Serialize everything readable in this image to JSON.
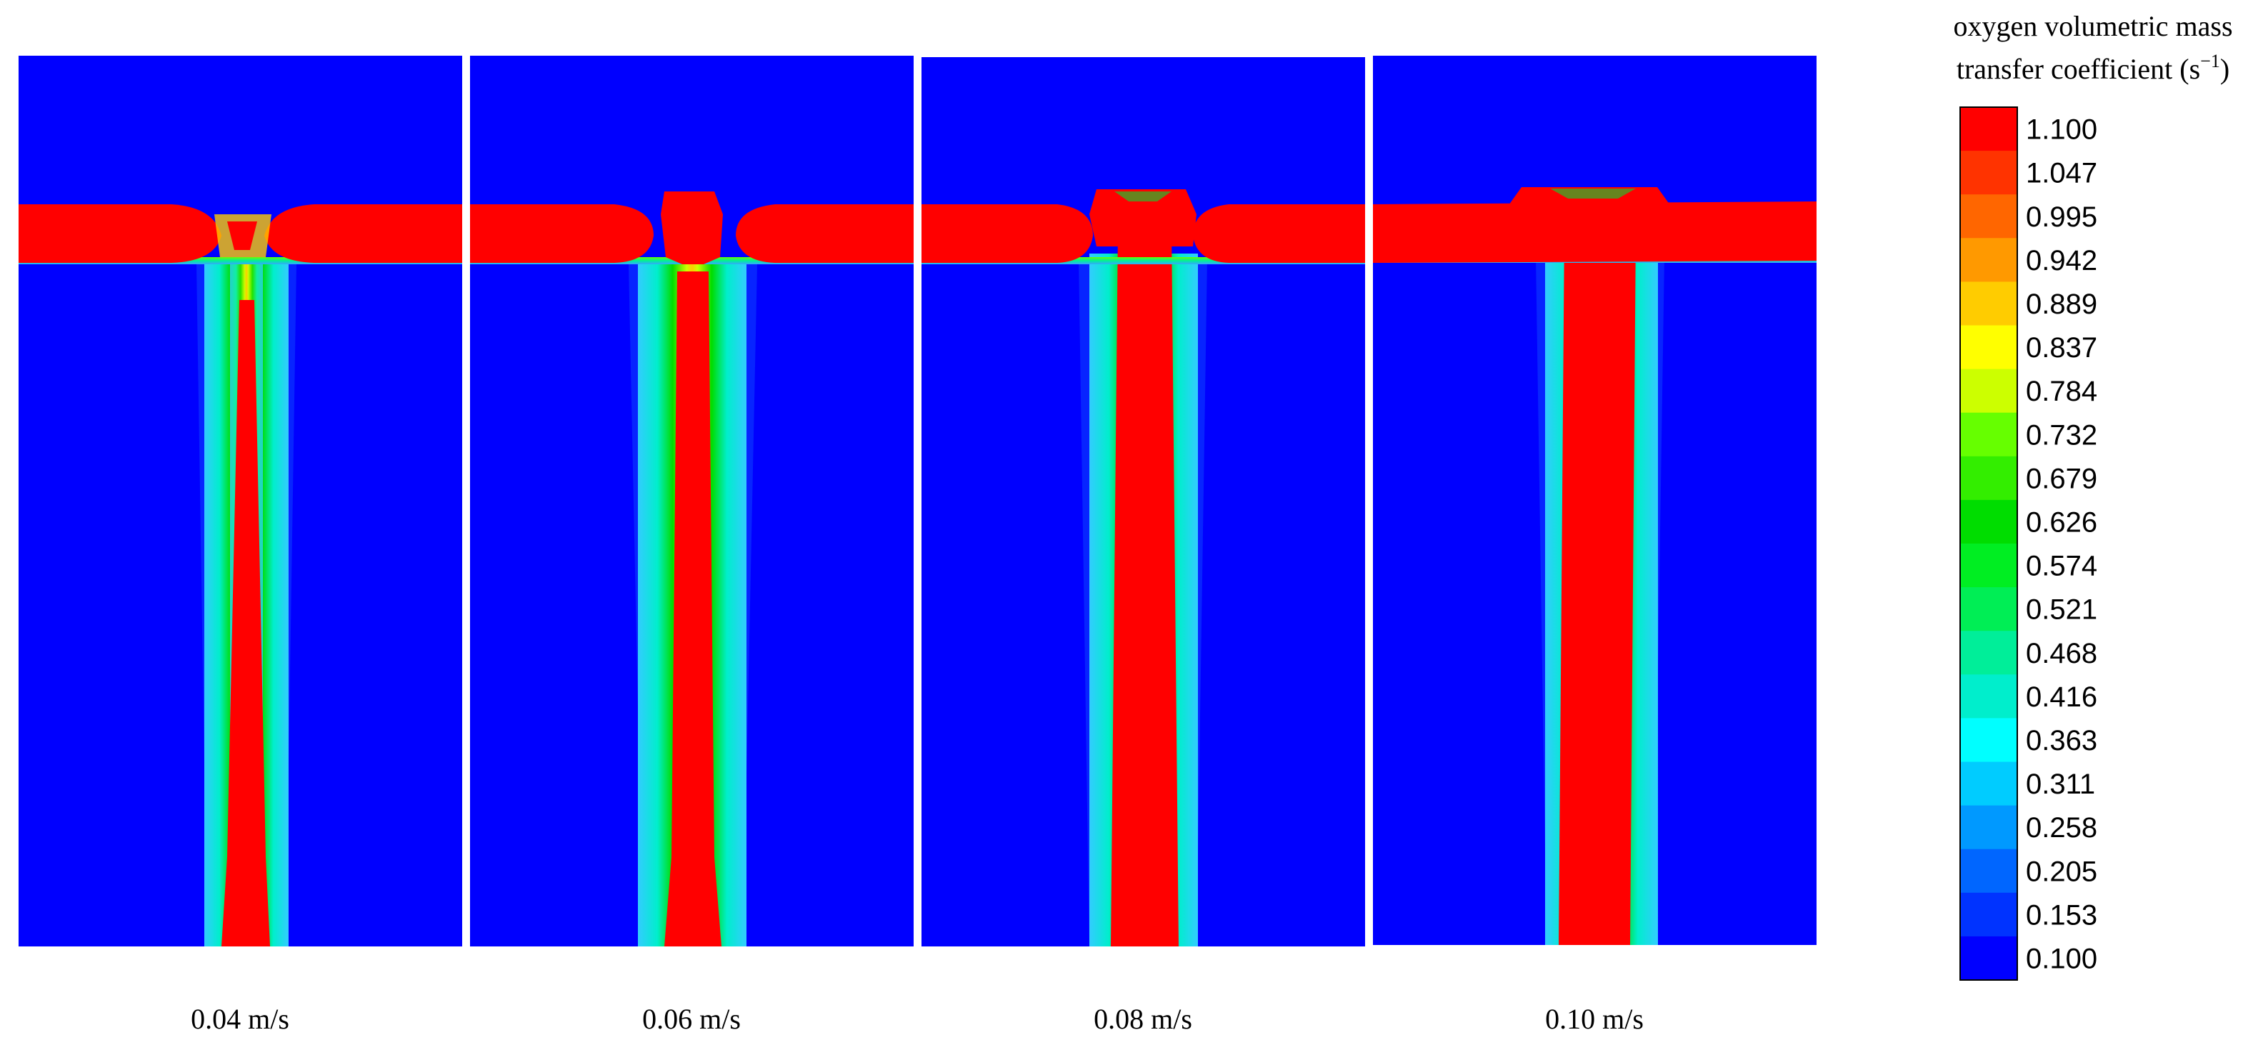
{
  "figure": {
    "panels": [
      {
        "label": "0.04 m/s",
        "velocity": 0.04
      },
      {
        "label": "0.06 m/s",
        "velocity": 0.06
      },
      {
        "label": "0.08 m/s",
        "velocity": 0.08
      },
      {
        "label": "0.10 m/s",
        "velocity": 0.1
      }
    ],
    "colorbar": {
      "title_line1": "oxygen volumetric mass",
      "title_line2": "transfer coefficient (s",
      "title_sup": "−1",
      "title_close": ")",
      "ticks": [
        "1.100",
        "1.047",
        "0.995",
        "0.942",
        "0.889",
        "0.837",
        "0.784",
        "0.732",
        "0.679",
        "0.626",
        "0.574",
        "0.521",
        "0.468",
        "0.416",
        "0.363",
        "0.311",
        "0.258",
        "0.205",
        "0.153",
        "0.100"
      ],
      "colors": [
        "#ff0000",
        "#ff3300",
        "#ff6600",
        "#ff9900",
        "#ffcc00",
        "#ffff00",
        "#ccff00",
        "#66ff00",
        "#33ee00",
        "#00dd00",
        "#00ee22",
        "#00ee55",
        "#00ee99",
        "#00eecc",
        "#00ffff",
        "#00ccff",
        "#0099ff",
        "#0066ff",
        "#0033ff",
        "#0000ff"
      ]
    },
    "background_color": "#0000ff",
    "high_color": "#ff0000"
  }
}
